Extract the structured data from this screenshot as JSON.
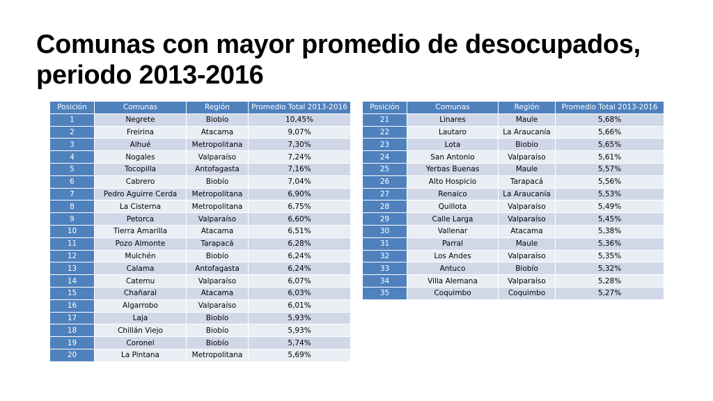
{
  "title": "Comunas con mayor promedio de desocupados, periodo 2013-2016",
  "headers": [
    "Posición",
    "Comunas",
    "Región",
    "Promedio Total 2013-2016"
  ],
  "colors": {
    "header_bg": "#4f81bd",
    "row_odd": "#d0d8e8",
    "row_even": "#e9edf4"
  },
  "table1": [
    {
      "pos": "1",
      "comuna": "Negrete",
      "region": "Biobío",
      "promedio": "10,45%"
    },
    {
      "pos": "2",
      "comuna": "Freirina",
      "region": "Atacama",
      "promedio": "9,07%"
    },
    {
      "pos": "3",
      "comuna": "Alhué",
      "region": "Metropolitana",
      "promedio": "7,30%"
    },
    {
      "pos": "4",
      "comuna": "Nogales",
      "region": "Valparaíso",
      "promedio": "7,24%"
    },
    {
      "pos": "5",
      "comuna": "Tocopilla",
      "region": "Antofagasta",
      "promedio": "7,16%"
    },
    {
      "pos": "6",
      "comuna": "Cabrero",
      "region": "Biobío",
      "promedio": "7,04%"
    },
    {
      "pos": "7",
      "comuna": "Pedro Aguirre Cerda",
      "region": "Metropolitana",
      "promedio": "6,90%"
    },
    {
      "pos": "8",
      "comuna": "La Cisterna",
      "region": "Metropolitana",
      "promedio": "6,75%"
    },
    {
      "pos": "9",
      "comuna": "Petorca",
      "region": "Valparaíso",
      "promedio": "6,60%"
    },
    {
      "pos": "10",
      "comuna": "Tierra Amarilla",
      "region": "Atacama",
      "promedio": "6,51%"
    },
    {
      "pos": "11",
      "comuna": "Pozo Almonte",
      "region": "Tarapacá",
      "promedio": "6,28%"
    },
    {
      "pos": "12",
      "comuna": "Mulchén",
      "region": "Biobío",
      "promedio": "6,24%"
    },
    {
      "pos": "13",
      "comuna": "Calama",
      "region": "Antofagasta",
      "promedio": "6,24%"
    },
    {
      "pos": "14",
      "comuna": "Catemu",
      "region": "Valparaíso",
      "promedio": "6,07%"
    },
    {
      "pos": "15",
      "comuna": "Chañaral",
      "region": "Atacama",
      "promedio": "6,03%"
    },
    {
      "pos": "16",
      "comuna": "Algarrobo",
      "region": "Valparaíso",
      "promedio": "6,01%"
    },
    {
      "pos": "17",
      "comuna": "Laja",
      "region": "Biobío",
      "promedio": "5,93%"
    },
    {
      "pos": "18",
      "comuna": "Chillán Viejo",
      "region": "Biobío",
      "promedio": "5,93%"
    },
    {
      "pos": "19",
      "comuna": "Coronel",
      "region": "Biobío",
      "promedio": "5,74%"
    },
    {
      "pos": "20",
      "comuna": "La Pintana",
      "region": "Metropolitana",
      "promedio": "5,69%"
    }
  ],
  "table2": [
    {
      "pos": "21",
      "comuna": "Linares",
      "region": "Maule",
      "promedio": "5,68%"
    },
    {
      "pos": "22",
      "comuna": "Lautaro",
      "region": "La Araucanía",
      "promedio": "5,66%"
    },
    {
      "pos": "23",
      "comuna": "Lota",
      "region": "Biobío",
      "promedio": "5,65%"
    },
    {
      "pos": "24",
      "comuna": "San Antonio",
      "region": "Valparaíso",
      "promedio": "5,61%"
    },
    {
      "pos": "25",
      "comuna": "Yerbas Buenas",
      "region": "Maule",
      "promedio": "5,57%"
    },
    {
      "pos": "26",
      "comuna": "Alto Hospicio",
      "region": "Tarapacá",
      "promedio": "5,56%"
    },
    {
      "pos": "27",
      "comuna": "Renaico",
      "region": "La Araucanía",
      "promedio": "5,53%"
    },
    {
      "pos": "28",
      "comuna": "Quillota",
      "region": "Valparaíso",
      "promedio": "5,49%"
    },
    {
      "pos": "29",
      "comuna": "Calle Larga",
      "region": "Valparaíso",
      "promedio": "5,45%"
    },
    {
      "pos": "30",
      "comuna": "Vallenar",
      "region": "Atacama",
      "promedio": "5,38%"
    },
    {
      "pos": "31",
      "comuna": "Parral",
      "region": "Maule",
      "promedio": "5,36%"
    },
    {
      "pos": "32",
      "comuna": "Los Andes",
      "region": "Valparaíso",
      "promedio": "5,35%"
    },
    {
      "pos": "33",
      "comuna": "Antuco",
      "region": "Biobío",
      "promedio": "5,32%"
    },
    {
      "pos": "34",
      "comuna": "Villa Alemana",
      "region": "Valparaíso",
      "promedio": "5,28%"
    },
    {
      "pos": "35",
      "comuna": "Coquimbo",
      "region": "Coquimbo",
      "promedio": "5,27%"
    }
  ]
}
